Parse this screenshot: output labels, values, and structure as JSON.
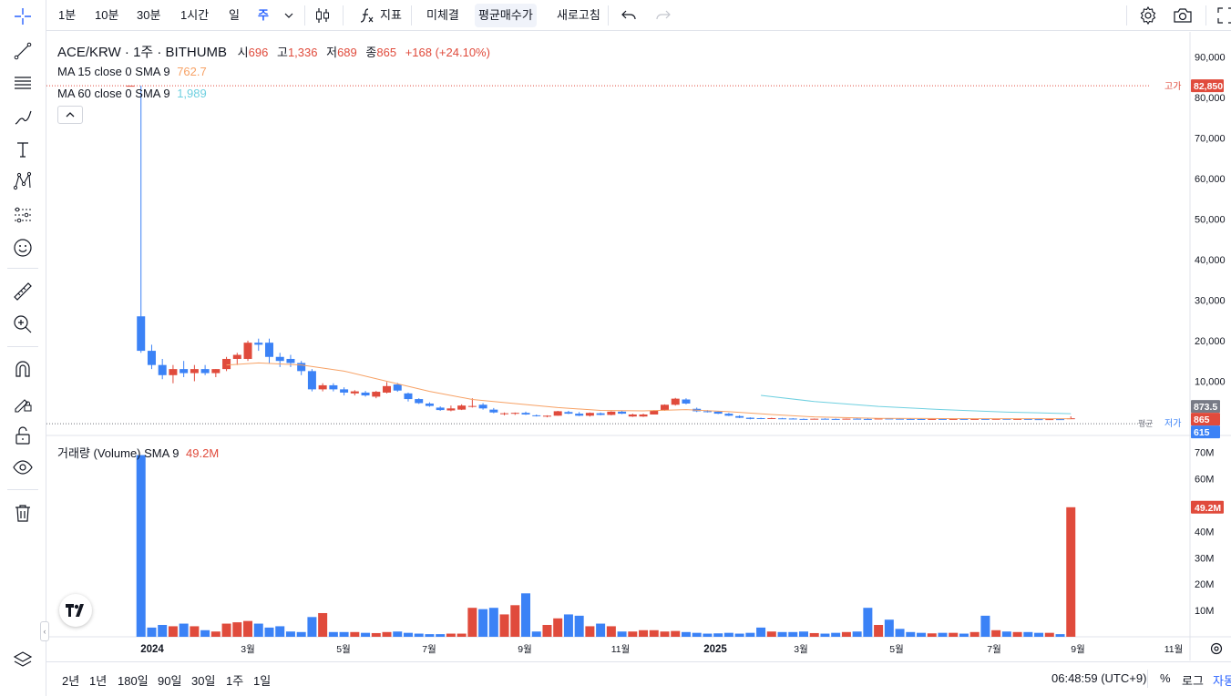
{
  "top_toolbar": {
    "intervals": [
      "1분",
      "10분",
      "30분",
      "1시간",
      "일",
      "주"
    ],
    "active_interval": "주",
    "indicators_label": "지표",
    "unfilled_label": "미체결",
    "avg_price_label": "평균매수가",
    "refresh_label": "새로고침"
  },
  "legend": {
    "symbol": "ACE/KRW · 1주 · BITHUMB",
    "open_label": "시",
    "open": "696",
    "high_label": "고",
    "high": "1,336",
    "low_label": "저",
    "low": "689",
    "close_label": "종",
    "close": "865",
    "change": "+168 (+24.10%)",
    "ma15_label": "MA 15 close 0 SMA 9",
    "ma15_value": "762.7",
    "ma60_label": "MA 60 close 0 SMA 9",
    "ma60_value": "1,989",
    "volume_label": "거래량 (Volume) SMA 9",
    "volume_value": "49.2M"
  },
  "price_axis": {
    "ticks": [
      "90,000",
      "80,000",
      "70,000",
      "60,000",
      "50,000",
      "40,000",
      "30,000",
      "20,000",
      "10,000"
    ],
    "high_tag_label": "고가",
    "high_tag_value": "82,850",
    "avg_tag_value": "873.5",
    "current_tag_value": "865",
    "low_tag_label": "저가",
    "low_tag_value": "615",
    "avg_line_label": "평균"
  },
  "volume_axis": {
    "ticks": [
      "70M",
      "60M",
      "50M",
      "40M",
      "30M",
      "20M",
      "10M"
    ],
    "current_value": "49.2M"
  },
  "time_axis": {
    "labels": [
      "2024",
      "3월",
      "5월",
      "7월",
      "9월",
      "11월",
      "2025",
      "3월",
      "5월",
      "7월",
      "9월",
      "11월"
    ]
  },
  "bottom_bar": {
    "ranges": [
      "2년",
      "1년",
      "180일",
      "90일",
      "30일",
      "1주",
      "1일"
    ],
    "clock": "06:48:59 (UTC+9)",
    "percent_label": "%",
    "log_label": "로그",
    "auto_label": "자동"
  },
  "colors": {
    "up": "#e04b3c",
    "down": "#3b82f6",
    "ma15": "#f7a266",
    "ma60": "#6fd0e0",
    "accent": "#2962ff"
  },
  "chart_data": {
    "type": "candlestick",
    "interval": "1주",
    "ylim": [
      0,
      95000
    ],
    "volume_ylim": [
      0,
      73000000
    ],
    "time_labels": [
      "2024",
      "3월",
      "5월",
      "7월",
      "9월",
      "11월",
      "2025",
      "3월",
      "5월",
      "7월",
      "9월",
      "11월"
    ],
    "candles": [
      {
        "o": 82850,
        "h": 82850,
        "l": 82850,
        "c": 82850,
        "v": 0
      },
      {
        "o": 26000,
        "h": 82850,
        "l": 17000,
        "c": 17500,
        "v": 69000000
      },
      {
        "o": 17500,
        "h": 19000,
        "l": 13000,
        "c": 14000,
        "v": 3500000
      },
      {
        "o": 14000,
        "h": 15500,
        "l": 10500,
        "c": 11500,
        "v": 4500000
      },
      {
        "o": 11500,
        "h": 14000,
        "l": 9500,
        "c": 13000,
        "v": 4000000
      },
      {
        "o": 13000,
        "h": 15000,
        "l": 11000,
        "c": 12000,
        "v": 5000000
      },
      {
        "o": 12000,
        "h": 14000,
        "l": 10000,
        "c": 13000,
        "v": 4000000
      },
      {
        "o": 13000,
        "h": 14000,
        "l": 11500,
        "c": 12000,
        "v": 2500000
      },
      {
        "o": 12000,
        "h": 13000,
        "l": 11000,
        "c": 13000,
        "v": 2000000
      },
      {
        "o": 13000,
        "h": 16000,
        "l": 12500,
        "c": 15500,
        "v": 5000000
      },
      {
        "o": 15500,
        "h": 17000,
        "l": 14000,
        "c": 16500,
        "v": 5500000
      },
      {
        "o": 15500,
        "h": 20000,
        "l": 15000,
        "c": 19500,
        "v": 6000000
      },
      {
        "o": 19500,
        "h": 20500,
        "l": 17500,
        "c": 19000,
        "v": 5000000
      },
      {
        "o": 19500,
        "h": 20500,
        "l": 14500,
        "c": 16000,
        "v": 3500000
      },
      {
        "o": 16000,
        "h": 17000,
        "l": 13500,
        "c": 15000,
        "v": 4000000
      },
      {
        "o": 15500,
        "h": 16500,
        "l": 13500,
        "c": 14500,
        "v": 2000000
      },
      {
        "o": 14500,
        "h": 15000,
        "l": 11500,
        "c": 12500,
        "v": 1800000
      },
      {
        "o": 12500,
        "h": 13000,
        "l": 7500,
        "c": 8000,
        "v": 7500000
      },
      {
        "o": 8000,
        "h": 9500,
        "l": 7500,
        "c": 9000,
        "v": 9000000
      },
      {
        "o": 9000,
        "h": 9500,
        "l": 7500,
        "c": 8000,
        "v": 1800000
      },
      {
        "o": 8000,
        "h": 8500,
        "l": 6500,
        "c": 7200,
        "v": 1800000
      },
      {
        "o": 7000,
        "h": 7800,
        "l": 6500,
        "c": 7500,
        "v": 1800000
      },
      {
        "o": 7200,
        "h": 7600,
        "l": 6200,
        "c": 6500,
        "v": 1500000
      },
      {
        "o": 6200,
        "h": 7600,
        "l": 5800,
        "c": 7400,
        "v": 1400000
      },
      {
        "o": 7200,
        "h": 9800,
        "l": 7000,
        "c": 8800,
        "v": 1800000
      },
      {
        "o": 9200,
        "h": 9600,
        "l": 7400,
        "c": 7700,
        "v": 2000000
      },
      {
        "o": 7000,
        "h": 7200,
        "l": 5000,
        "c": 5600,
        "v": 1500000
      },
      {
        "o": 5600,
        "h": 5800,
        "l": 4400,
        "c": 4600,
        "v": 1200000
      },
      {
        "o": 4500,
        "h": 4800,
        "l": 3700,
        "c": 3900,
        "v": 1000000
      },
      {
        "o": 3500,
        "h": 3800,
        "l": 2700,
        "c": 2900,
        "v": 1000000
      },
      {
        "o": 2800,
        "h": 4000,
        "l": 2600,
        "c": 3300,
        "v": 1200000
      },
      {
        "o": 3000,
        "h": 4300,
        "l": 2900,
        "c": 4000,
        "v": 1200000
      },
      {
        "o": 3800,
        "h": 5800,
        "l": 3500,
        "c": 3900,
        "v": 11000000
      },
      {
        "o": 4200,
        "h": 4600,
        "l": 3000,
        "c": 3300,
        "v": 10500000
      },
      {
        "o": 3000,
        "h": 3400,
        "l": 2100,
        "c": 2300,
        "v": 11000000
      },
      {
        "o": 2000,
        "h": 2300,
        "l": 1600,
        "c": 2100,
        "v": 8500000
      },
      {
        "o": 2000,
        "h": 2300,
        "l": 1700,
        "c": 2200,
        "v": 12000000
      },
      {
        "o": 2200,
        "h": 2500,
        "l": 1700,
        "c": 1800,
        "v": 16500000
      },
      {
        "o": 1600,
        "h": 1800,
        "l": 1300,
        "c": 1400,
        "v": 2000000
      },
      {
        "o": 1300,
        "h": 1600,
        "l": 1100,
        "c": 1500,
        "v": 4500000
      },
      {
        "o": 1500,
        "h": 2700,
        "l": 1500,
        "c": 2600,
        "v": 7000000
      },
      {
        "o": 2400,
        "h": 2700,
        "l": 1900,
        "c": 2000,
        "v": 8500000
      },
      {
        "o": 2000,
        "h": 2400,
        "l": 1400,
        "c": 1500,
        "v": 8000000
      },
      {
        "o": 1500,
        "h": 2300,
        "l": 1300,
        "c": 2200,
        "v": 4000000
      },
      {
        "o": 2100,
        "h": 2300,
        "l": 1600,
        "c": 1700,
        "v": 5000000
      },
      {
        "o": 1700,
        "h": 2600,
        "l": 1600,
        "c": 2500,
        "v": 4000000
      },
      {
        "o": 2500,
        "h": 2700,
        "l": 1900,
        "c": 2000,
        "v": 2000000
      },
      {
        "o": 1300,
        "h": 2000,
        "l": 1200,
        "c": 1800,
        "v": 2000000
      },
      {
        "o": 1300,
        "h": 2000,
        "l": 1200,
        "c": 1800,
        "v": 2500000
      },
      {
        "o": 1800,
        "h": 2900,
        "l": 1800,
        "c": 2800,
        "v": 2500000
      },
      {
        "o": 2800,
        "h": 4300,
        "l": 2700,
        "c": 4200,
        "v": 2000000
      },
      {
        "o": 4200,
        "h": 5900,
        "l": 4000,
        "c": 5700,
        "v": 2200000
      },
      {
        "o": 5500,
        "h": 5800,
        "l": 4300,
        "c": 4500,
        "v": 1800000
      },
      {
        "o": 3200,
        "h": 3500,
        "l": 2400,
        "c": 2600,
        "v": 1500000
      },
      {
        "o": 2600,
        "h": 2900,
        "l": 2300,
        "c": 2500,
        "v": 1200000
      },
      {
        "o": 2500,
        "h": 2700,
        "l": 1900,
        "c": 2000,
        "v": 1300000
      },
      {
        "o": 2000,
        "h": 2200,
        "l": 1400,
        "c": 1500,
        "v": 1500000
      },
      {
        "o": 1400,
        "h": 1600,
        "l": 900,
        "c": 1000,
        "v": 1200000
      },
      {
        "o": 1000,
        "h": 1100,
        "l": 600,
        "c": 700,
        "v": 1500000
      },
      {
        "o": 900,
        "h": 1000,
        "l": 650,
        "c": 750,
        "v": 3500000
      },
      {
        "o": 800,
        "h": 1000,
        "l": 700,
        "c": 900,
        "v": 2000000
      },
      {
        "o": 850,
        "h": 950,
        "l": 700,
        "c": 750,
        "v": 1800000
      },
      {
        "o": 800,
        "h": 900,
        "l": 650,
        "c": 700,
        "v": 1800000
      },
      {
        "o": 700,
        "h": 800,
        "l": 600,
        "c": 650,
        "v": 2000000
      },
      {
        "o": 650,
        "h": 800,
        "l": 600,
        "c": 750,
        "v": 1400000
      },
      {
        "o": 750,
        "h": 850,
        "l": 650,
        "c": 700,
        "v": 1200000
      },
      {
        "o": 700,
        "h": 800,
        "l": 620,
        "c": 680,
        "v": 1500000
      },
      {
        "o": 680,
        "h": 800,
        "l": 620,
        "c": 760,
        "v": 1800000
      },
      {
        "o": 760,
        "h": 850,
        "l": 650,
        "c": 700,
        "v": 2000000
      },
      {
        "o": 700,
        "h": 800,
        "l": 620,
        "c": 680,
        "v": 11000000
      },
      {
        "o": 680,
        "h": 850,
        "l": 620,
        "c": 800,
        "v": 4500000
      },
      {
        "o": 800,
        "h": 900,
        "l": 700,
        "c": 750,
        "v": 6500000
      },
      {
        "o": 750,
        "h": 800,
        "l": 650,
        "c": 700,
        "v": 3000000
      },
      {
        "o": 700,
        "h": 780,
        "l": 620,
        "c": 680,
        "v": 1800000
      },
      {
        "o": 680,
        "h": 760,
        "l": 600,
        "c": 640,
        "v": 1500000
      },
      {
        "o": 640,
        "h": 720,
        "l": 600,
        "c": 700,
        "v": 1300000
      },
      {
        "o": 700,
        "h": 760,
        "l": 620,
        "c": 660,
        "v": 1500000
      },
      {
        "o": 660,
        "h": 740,
        "l": 610,
        "c": 700,
        "v": 1500000
      },
      {
        "o": 700,
        "h": 760,
        "l": 600,
        "c": 650,
        "v": 1200000
      },
      {
        "o": 650,
        "h": 720,
        "l": 600,
        "c": 700,
        "v": 1800000
      },
      {
        "o": 700,
        "h": 760,
        "l": 620,
        "c": 680,
        "v": 8000000
      },
      {
        "o": 680,
        "h": 740,
        "l": 620,
        "c": 720,
        "v": 2500000
      },
      {
        "o": 720,
        "h": 760,
        "l": 620,
        "c": 660,
        "v": 2000000
      },
      {
        "o": 660,
        "h": 720,
        "l": 620,
        "c": 700,
        "v": 1800000
      },
      {
        "o": 700,
        "h": 760,
        "l": 620,
        "c": 650,
        "v": 1800000
      },
      {
        "o": 650,
        "h": 700,
        "l": 600,
        "c": 630,
        "v": 1500000
      },
      {
        "o": 630,
        "h": 700,
        "l": 600,
        "c": 650,
        "v": 1500000
      },
      {
        "o": 650,
        "h": 700,
        "l": 600,
        "c": 620,
        "v": 1000000
      },
      {
        "o": 696,
        "h": 1336,
        "l": 689,
        "c": 865,
        "v": 49200000
      }
    ],
    "ma15": [
      [
        9,
        14000
      ],
      [
        12,
        14500
      ],
      [
        16,
        14000
      ],
      [
        20,
        12500
      ],
      [
        24,
        10000
      ],
      [
        28,
        7500
      ],
      [
        32,
        5500
      ],
      [
        36,
        4500
      ],
      [
        40,
        3500
      ],
      [
        44,
        2800
      ],
      [
        48,
        2700
      ],
      [
        52,
        3000
      ],
      [
        56,
        2500
      ],
      [
        60,
        1800
      ],
      [
        64,
        1200
      ],
      [
        70,
        850
      ],
      [
        76,
        800
      ],
      [
        82,
        750
      ],
      [
        88,
        760
      ]
    ],
    "ma60": [
      [
        59,
        6500
      ],
      [
        64,
        5000
      ],
      [
        70,
        3800
      ],
      [
        76,
        3000
      ],
      [
        82,
        2400
      ],
      [
        88,
        2000
      ]
    ]
  }
}
